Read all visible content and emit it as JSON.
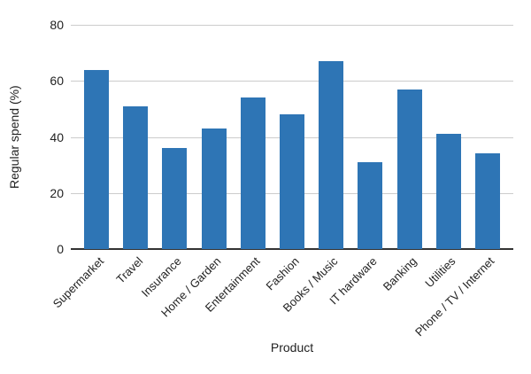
{
  "chart_data": {
    "type": "bar",
    "title": "",
    "categories": [
      "Supermarket",
      "Travel",
      "Insurance",
      "Home / Garden",
      "Entertainment",
      "Fashion",
      "Books / Music",
      "IT hardware",
      "Banking",
      "Utilities",
      "Phone / TV / Internet"
    ],
    "values": [
      64,
      51,
      36,
      43,
      54,
      48,
      67,
      31,
      57,
      41,
      34
    ],
    "xlabel": "Product",
    "ylabel": "Regular spend (%)",
    "ylim": [
      0,
      80
    ],
    "yticks": [
      0,
      20,
      40,
      60,
      80
    ],
    "grid": true,
    "legend": "none",
    "colors": {
      "bar": "#2e75b5",
      "gridline": "#cccccc",
      "axis_line": "#333333",
      "text": "#222222",
      "background": "#ffffff"
    }
  }
}
